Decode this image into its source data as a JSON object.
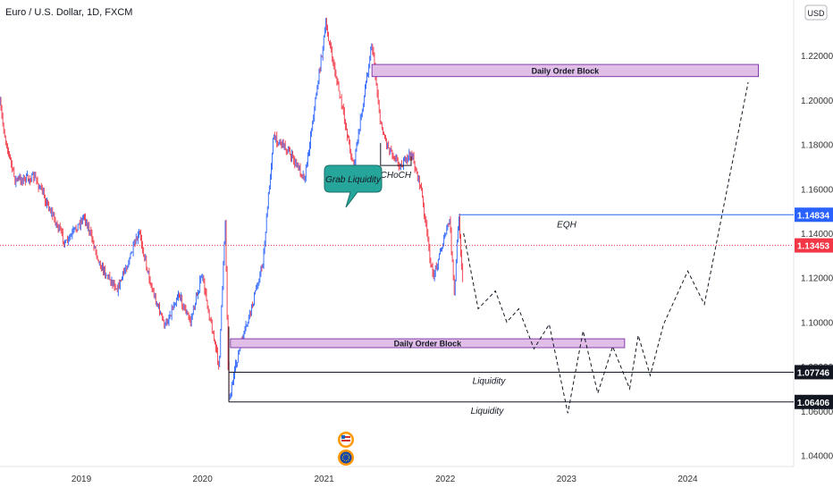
{
  "chart_data": {
    "type": "line",
    "title": "Euro / U.S. Dollar, 1D, FXCM",
    "currency": "USD",
    "y_ticks": [
      "1.22000",
      "1.20000",
      "1.18000",
      "1.16000",
      "1.14000",
      "1.12000",
      "1.10000",
      "1.08000",
      "1.06000",
      "1.04000"
    ],
    "x_ticks": [
      "2019",
      "2020",
      "2021",
      "2022",
      "2023",
      "2024"
    ],
    "price_path": {
      "x": [
        "2018-05-01",
        "2018-05-15",
        "2018-06-15",
        "2018-08-15",
        "2018-10-01",
        "2018-11-15",
        "2019-01-10",
        "2019-03-01",
        "2019-04-20",
        "2019-06-25",
        "2019-08-01",
        "2019-09-10",
        "2019-10-20",
        "2019-11-25",
        "2019-12-30",
        "2020-02-20",
        "2020-03-09",
        "2020-03-20",
        "2020-04-20",
        "2020-05-25",
        "2020-07-01",
        "2020-08-01",
        "2020-09-01",
        "2020-11-04",
        "2021-01-06",
        "2021-03-31",
        "2021-05-25",
        "2021-06-20",
        "2021-07-10",
        "2021-08-20",
        "2021-09-20",
        "2021-10-20",
        "2021-11-24",
        "2022-01-14",
        "2022-01-28",
        "2022-02-10",
        "2022-02-25"
      ],
      "y": [
        1.198,
        1.184,
        1.164,
        1.165,
        1.15,
        1.135,
        1.148,
        1.125,
        1.115,
        1.14,
        1.115,
        1.098,
        1.113,
        1.1,
        1.121,
        1.08,
        1.147,
        1.065,
        1.087,
        1.105,
        1.127,
        1.183,
        1.18,
        1.165,
        1.234,
        1.17,
        1.226,
        1.189,
        1.18,
        1.17,
        1.176,
        1.16,
        1.12,
        1.146,
        1.112,
        1.148,
        1.113
      ]
    },
    "projection": {
      "x": [
        "2022-02-25",
        "2022-04-10",
        "2022-06-01",
        "2022-07-05",
        "2022-08-10",
        "2022-09-25",
        "2022-11-10",
        "2023-01-05",
        "2023-02-20",
        "2023-04-05",
        "2023-05-20",
        "2023-07-10",
        "2023-08-05",
        "2023-09-10",
        "2023-10-20",
        "2024-01-01",
        "2024-02-20",
        "2024-07-01"
      ],
      "y": [
        1.14,
        1.106,
        1.114,
        1.1,
        1.106,
        1.088,
        1.099,
        1.059,
        1.096,
        1.068,
        1.089,
        1.07,
        1.094,
        1.076,
        1.099,
        1.123,
        1.108,
        1.208
      ]
    },
    "ylim": [
      1.035,
      1.245
    ],
    "xlim": [
      "2018-05-01",
      "2024-11-15"
    ],
    "annotations": {
      "order_block_top": {
        "label": "Daily Order Block",
        "x": [
          "2021-05-25",
          "2024-08-01"
        ],
        "y": [
          1.2105,
          1.216
        ]
      },
      "order_block_bottom": {
        "label": "Daily Order Block",
        "x": [
          "2020-03-25",
          "2023-06-25"
        ],
        "y": [
          1.0885,
          1.0925
        ]
      },
      "choch": {
        "label": "CHoCH",
        "x": [
          "2021-06-20",
          "2021-09-20"
        ],
        "y": 1.1705
      },
      "grab_liquidity": "Grab Liquidity",
      "eqh": {
        "label": "EQH",
        "value": 1.14834,
        "start": "2022-02-10",
        "value_label": "1.14834"
      },
      "liquidity_1": {
        "label": "Liquidity",
        "value": 1.07746,
        "start": "2020-03-20",
        "value_label": "1.07746"
      },
      "liquidity_2": {
        "label": "Liquidity",
        "value": 1.06406,
        "start": "2020-03-20",
        "value_label": "1.06406"
      },
      "current_price": {
        "value": 1.13453,
        "value_label": "1.13453"
      }
    },
    "colors": {
      "up_candle": "#2962ff",
      "down_candle": "#f23645",
      "eqh_line": "#2962ff",
      "current_price": "#f23645",
      "order_block_fill": "#e1bee7",
      "grab_liquidity_bubble": "#26a69a",
      "liquidity_line": "#131722"
    },
    "grid": false,
    "legend": "none"
  }
}
